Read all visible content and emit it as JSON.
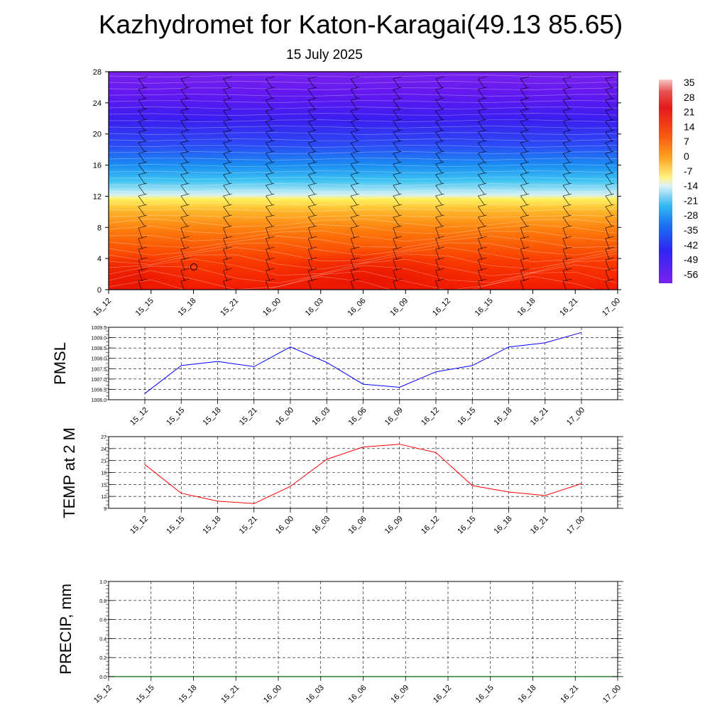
{
  "page": {
    "title": "Kazhydromet for Katon-Karagai(49.13 85.65)",
    "date": "15 July 2025"
  },
  "colorbar": {
    "labels": [
      "35",
      "28",
      "21",
      "14",
      "7",
      "0",
      "-7",
      "-14",
      "-21",
      "-28",
      "-35",
      "-42",
      "-49",
      "-56"
    ]
  },
  "time_labels": [
    "15_12",
    "15_15",
    "15_18",
    "15_21",
    "16_00",
    "16_03",
    "16_06",
    "16_09",
    "16_12",
    "16_15",
    "16_18",
    "16_21",
    "17_00"
  ],
  "chart_data": [
    {
      "type": "heatmap",
      "title": "",
      "xlabel": "",
      "ylabel": "",
      "categories": [
        "15_12",
        "15_15",
        "15_18",
        "15_21",
        "16_00",
        "16_03",
        "16_06",
        "16_09",
        "16_12",
        "16_15",
        "16_18",
        "16_21",
        "17_00"
      ],
      "ylim": [
        0,
        28
      ],
      "yticks": [
        "0",
        "4",
        "8",
        "12",
        "16",
        "20",
        "24",
        "28"
      ],
      "legend": "colorbar right",
      "colors": {
        "warm": "#e41a1c",
        "cold": "#6a0fe0"
      }
    },
    {
      "type": "line",
      "ylabel": "PMSL",
      "categories": [
        "15_12",
        "15_15",
        "15_18",
        "15_21",
        "16_00",
        "16_03",
        "16_06",
        "16_09",
        "16_12",
        "16_15",
        "16_18",
        "16_21",
        "17_00"
      ],
      "values": [
        1006.3,
        1007.65,
        1007.85,
        1007.6,
        1008.55,
        1007.8,
        1006.75,
        1006.6,
        1007.35,
        1007.65,
        1008.55,
        1008.75,
        1009.25
      ],
      "ylim": [
        1006.0,
        1009.5
      ],
      "yticks": [
        "1006.0",
        "1006.5",
        "1007.0",
        "1007.5",
        "1008.0",
        "1008.5",
        "1009.0",
        "1009.5"
      ],
      "color": "#0000ff",
      "grid": true
    },
    {
      "type": "line",
      "ylabel": "TEMP at 2 M",
      "categories": [
        "15_12",
        "15_15",
        "15_18",
        "15_21",
        "16_00",
        "16_03",
        "16_06",
        "16_09",
        "16_12",
        "16_15",
        "16_18",
        "16_21",
        "17_00"
      ],
      "values": [
        20.0,
        12.8,
        10.8,
        10.2,
        14.5,
        21.3,
        24.4,
        25.1,
        23.0,
        14.7,
        13.1,
        12.2,
        15.2
      ],
      "ylim": [
        9,
        27
      ],
      "yticks": [
        "9",
        "12",
        "15",
        "18",
        "21",
        "24",
        "27"
      ],
      "color": "#ff0000",
      "grid": true
    },
    {
      "type": "line",
      "ylabel": "PRECIP, mm",
      "categories": [
        "15_12",
        "15_15",
        "15_18",
        "15_21",
        "16_00",
        "16_03",
        "16_06",
        "16_09",
        "16_12",
        "16_15",
        "16_18",
        "16_21",
        "17_00"
      ],
      "values": [
        0,
        0,
        0,
        0,
        0,
        0,
        0,
        0,
        0,
        0,
        0,
        0,
        0
      ],
      "ylim": [
        0.0,
        1.0
      ],
      "yticks": [
        "0.0",
        "0.2",
        "0.4",
        "0.6",
        "0.8",
        "1.0"
      ],
      "color": "#006400",
      "grid": true
    }
  ]
}
